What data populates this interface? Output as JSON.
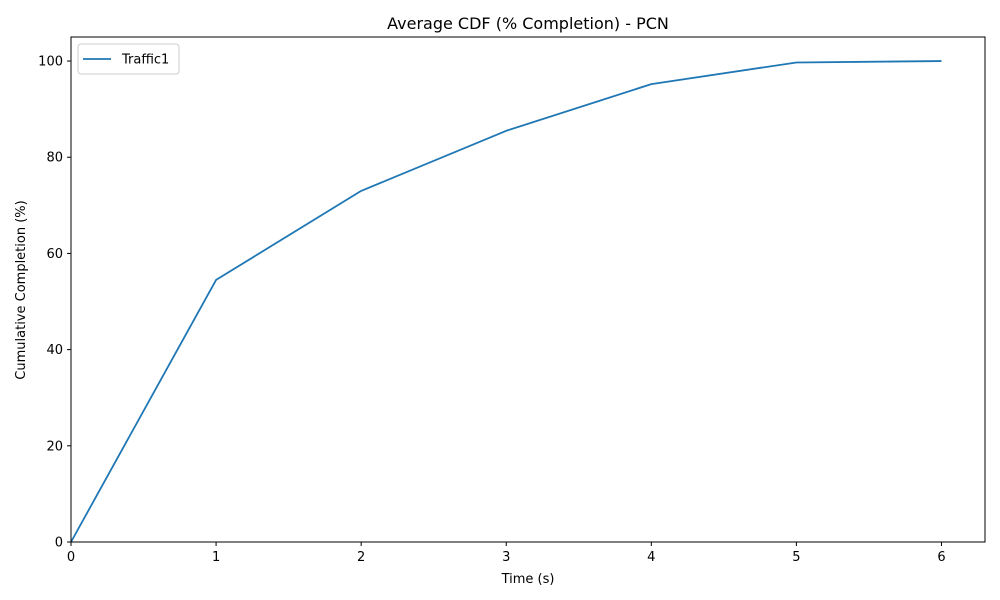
{
  "chart_data": {
    "type": "line",
    "title": "Average CDF (% Completion) - PCN",
    "xlabel": "Time (s)",
    "ylabel": "Cumulative Completion (%)",
    "xlim": [
      0,
      6.3
    ],
    "ylim": [
      0,
      105
    ],
    "x_ticks": [
      0,
      1,
      2,
      3,
      4,
      5,
      6
    ],
    "y_ticks": [
      0,
      20,
      40,
      60,
      80,
      100
    ],
    "grid": false,
    "legend": {
      "placement": "upper-left"
    },
    "series": [
      {
        "name": "Traffic1",
        "color": "#1f77b4",
        "x": [
          0,
          1,
          2,
          3,
          4,
          5,
          6
        ],
        "y": [
          0,
          54.5,
          73.0,
          85.5,
          95.2,
          99.7,
          100.0
        ]
      }
    ]
  }
}
